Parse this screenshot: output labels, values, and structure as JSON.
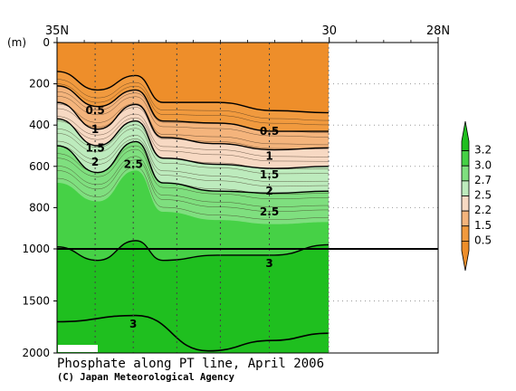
{
  "chart_data": {
    "type": "contour",
    "title": "Phosphate along PT line, April 2006",
    "credit": "(C) Japan Meteorological Agency",
    "x_axis": {
      "unit": "latitude",
      "range": [
        35,
        28
      ],
      "ticks": [
        {
          "value": 35,
          "label": "35N"
        },
        {
          "value": 30,
          "label": "30"
        },
        {
          "value": 28,
          "label": "28N"
        }
      ],
      "position": "top"
    },
    "y_axis": {
      "unit_label": "(m)",
      "inverted": true,
      "range": [
        0,
        2000
      ],
      "upper_ticks": [
        0,
        200,
        400,
        600,
        800,
        1000
      ],
      "lower_ticks": [
        1000,
        1500,
        2000
      ],
      "scale_break_at": 1000
    },
    "data_extent_lat": [
      35,
      30
    ],
    "station_lats": [
      34.3,
      33.6,
      32.8,
      32.0,
      31.1
    ],
    "contour_levels": [
      0.5,
      1,
      1.5,
      2,
      2.5,
      3
    ],
    "contour_labels": [
      {
        "text": "0.5",
        "lat": 34.3,
        "depth": 330
      },
      {
        "text": "1",
        "lat": 34.3,
        "depth": 420
      },
      {
        "text": "1.5",
        "lat": 34.3,
        "depth": 510
      },
      {
        "text": "2",
        "lat": 34.3,
        "depth": 580
      },
      {
        "text": "2.5",
        "lat": 33.6,
        "depth": 590
      },
      {
        "text": "0.5",
        "lat": 31.1,
        "depth": 430
      },
      {
        "text": "1",
        "lat": 31.1,
        "depth": 550
      },
      {
        "text": "1.5",
        "lat": 31.1,
        "depth": 640
      },
      {
        "text": "2",
        "lat": 31.1,
        "depth": 720
      },
      {
        "text": "2.5",
        "lat": 31.1,
        "depth": 820
      },
      {
        "text": "3",
        "lat": 31.1,
        "depth": 1140
      },
      {
        "text": "3",
        "lat": 33.6,
        "depth": 1720
      }
    ],
    "colorbar": {
      "labels": [
        "3.2",
        "3.0",
        "2.7",
        "2.5",
        "2.2",
        "1.5",
        "0.5"
      ],
      "colors": [
        "#1fbf1f",
        "#46d146",
        "#7fdf7f",
        "#bdebbd",
        "#f7d9c3",
        "#f4b47c",
        "#f19a3e",
        "#ee8e2a"
      ]
    }
  }
}
